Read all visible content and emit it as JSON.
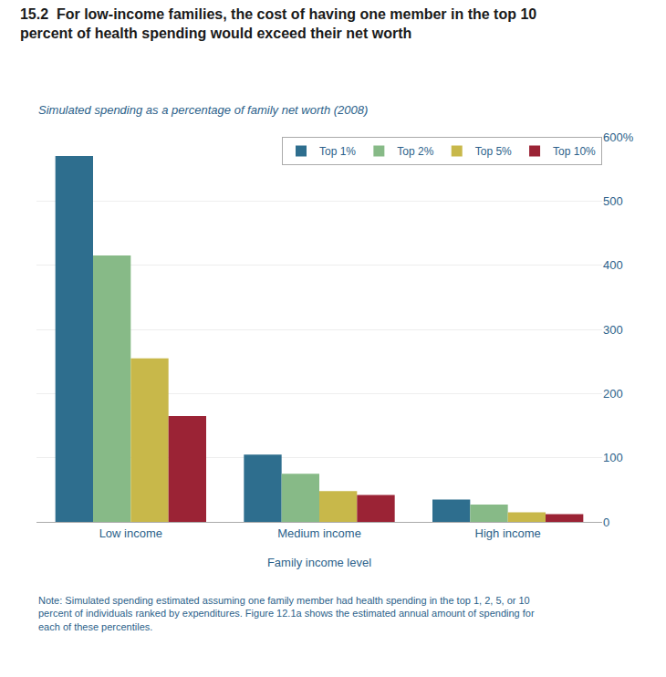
{
  "chart_data": {
    "type": "bar",
    "title": "15.2  For low-income families, the cost of having one member in the top 10\npercent of health spending would exceed their net worth",
    "subtitle": "Simulated spending as a percentage of family net worth (2008)",
    "xlabel": "Family income level",
    "note": "Note: Simulated spending estimated assuming one family member had health spending in the top 1, 2, 5, or 10\npercent of individuals ranked by expenditures. Figure 12.1a shows the estimated annual amount of spending for\neach of these percentiles.",
    "categories": [
      "Low income",
      "Medium income",
      "High income"
    ],
    "series": [
      {
        "name": "Top 1%",
        "color": "#2e6e8e",
        "values": [
          570,
          105,
          35
        ]
      },
      {
        "name": "Top 2%",
        "color": "#87ba87",
        "values": [
          415,
          75,
          27
        ]
      },
      {
        "name": "Top 5%",
        "color": "#c8b84a",
        "values": [
          255,
          48,
          15
        ]
      },
      {
        "name": "Top 10%",
        "color": "#9b2335",
        "values": [
          165,
          42,
          12
        ]
      }
    ],
    "ylim": [
      0,
      600
    ],
    "yticks": [
      0,
      100,
      200,
      300,
      400,
      500,
      {
        "value": 600,
        "label": "600%"
      }
    ],
    "grid": true,
    "legend": "upper right"
  }
}
